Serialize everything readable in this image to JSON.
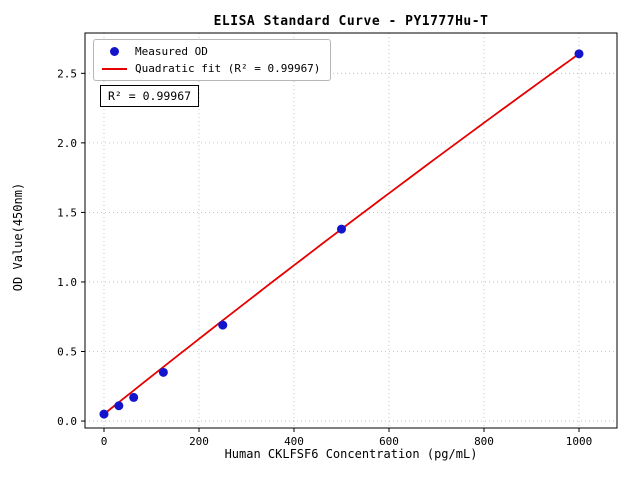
{
  "chart_data": {
    "type": "scatter",
    "title": "ELISA Standard Curve - PY1777Hu-T",
    "xlabel": "Human CKLFSF6 Concentration (pg/mL)",
    "ylabel": "OD Value(450nm)",
    "xlim": [
      -40,
      1080
    ],
    "ylim": [
      -0.05,
      2.79
    ],
    "x_ticks": [
      0,
      200,
      400,
      600,
      800,
      1000
    ],
    "x_tick_labels": [
      "0",
      "200",
      "400",
      "600",
      "800",
      "1000"
    ],
    "y_ticks": [
      0.0,
      0.5,
      1.0,
      1.5,
      2.0,
      2.5
    ],
    "y_tick_labels": [
      "0.0",
      "0.5",
      "1.0",
      "1.5",
      "2.0",
      "2.5"
    ],
    "grid": true,
    "legend_position": "upper left",
    "annotation": "R² = 0.99967",
    "series": [
      {
        "name": "Measured OD",
        "type": "scatter",
        "color": "#1414cc",
        "x": [
          0,
          31.25,
          62.5,
          125,
          250,
          500,
          1000
        ],
        "y": [
          0.05,
          0.11,
          0.17,
          0.35,
          0.69,
          1.38,
          2.64
        ]
      },
      {
        "name": "Quadratic fit (R² = 0.99967)",
        "type": "line",
        "color": "#e60000",
        "fit": {
          "a": 0.05,
          "b": 0.00273,
          "c": -1.4e-07
        },
        "fit_x_range": [
          0,
          1000
        ]
      }
    ]
  }
}
